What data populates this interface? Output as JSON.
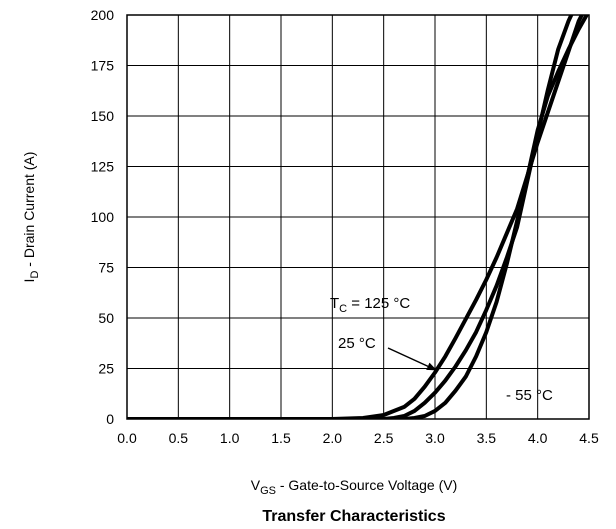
{
  "chart_data": {
    "type": "line",
    "title": "Transfer Characteristics",
    "xlabel": {
      "main": "V",
      "sub": "GS",
      "rest": " -   Gate-to-Source Voltage (V)"
    },
    "ylabel": {
      "main": "I",
      "sub": "D",
      "rest": " -   Drain Current (A)"
    },
    "xlim": [
      0,
      4.5
    ],
    "ylim": [
      0,
      200
    ],
    "xticks": [
      0.0,
      0.5,
      1.0,
      1.5,
      2.0,
      2.5,
      3.0,
      3.5,
      4.0,
      4.5
    ],
    "xtick_labels": [
      "0.0",
      "0.5",
      "1.0",
      "1.5",
      "2.0",
      "2.5",
      "3.0",
      "3.5",
      "4.0",
      "4.5"
    ],
    "yticks": [
      0,
      25,
      50,
      75,
      100,
      125,
      150,
      175,
      200
    ],
    "ytick_labels": [
      "0",
      "25",
      "50",
      "75",
      "100",
      "125",
      "150",
      "175",
      "200"
    ],
    "grid": true,
    "series": [
      {
        "name": "T_C = 125 °C",
        "x": [
          0,
          2.0,
          2.3,
          2.5,
          2.7,
          2.8,
          2.9,
          3.0,
          3.1,
          3.2,
          3.4,
          3.5,
          3.6,
          3.8,
          4.0,
          4.2,
          4.3,
          4.4,
          4.5
        ],
        "y": [
          0,
          0,
          0.5,
          2,
          6,
          10,
          16,
          23,
          31,
          40,
          59,
          69,
          80,
          104,
          137,
          167,
          182,
          197,
          207
        ]
      },
      {
        "name": "25 °C",
        "x": [
          0,
          2.5,
          2.6,
          2.7,
          2.8,
          2.9,
          3.0,
          3.1,
          3.2,
          3.3,
          3.4,
          3.5,
          3.6,
          3.7,
          3.8,
          3.9,
          4.0,
          4.1,
          4.2,
          4.3,
          4.4
        ],
        "y": [
          0,
          0,
          0.5,
          1.5,
          4,
          8,
          13,
          19,
          26,
          34,
          43,
          54,
          66,
          80,
          95,
          118,
          141,
          163,
          183,
          197,
          208
        ]
      },
      {
        "name": "- 55 °C",
        "x": [
          0,
          2.7,
          2.8,
          2.9,
          3.0,
          3.1,
          3.2,
          3.3,
          3.4,
          3.5,
          3.6,
          3.7,
          3.8,
          3.9,
          4.0,
          4.1,
          4.2,
          4.3,
          4.4,
          4.5
        ],
        "y": [
          0,
          0,
          0.5,
          1.5,
          4,
          8,
          14,
          21,
          31,
          43,
          58,
          77,
          98,
          120,
          143,
          160,
          172,
          183,
          193,
          202
        ]
      }
    ],
    "annotations": {
      "tc125": {
        "prefix": "T",
        "sub": "C",
        "suffix": " = 125 °C"
      },
      "t25": "25 °C",
      "tm55": "- 55 °C"
    }
  }
}
